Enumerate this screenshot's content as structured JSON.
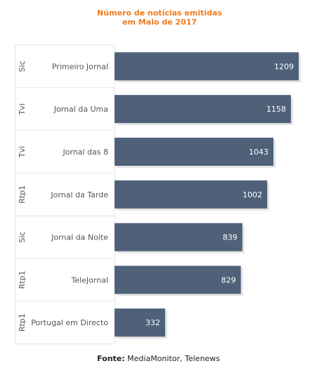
{
  "chart_data": {
    "type": "bar",
    "orientation": "horizontal",
    "title_lines": [
      "Número de notícias emitidas",
      "em Maio de 2017"
    ],
    "categories": [
      "Primeiro Jornal",
      "Jornal da Uma",
      "Jornal das 8",
      "Jornal da Tarde",
      "Jornal da Noite",
      "TeleJornal",
      "Portugal em Directo"
    ],
    "groups": [
      "Sic",
      "Tvi",
      "Tvi",
      "Rtp1",
      "Sic",
      "Rtp1",
      "Rtp1"
    ],
    "values": [
      1209,
      1158,
      1043,
      1002,
      839,
      829,
      332
    ],
    "value_labels": [
      "1209",
      "1158",
      "1043",
      "1002",
      "839",
      "829",
      "332"
    ],
    "xlim": [
      0,
      1209
    ],
    "grid": true,
    "colors": {
      "bar": "#4e6179",
      "title": "#f07b1d"
    }
  },
  "source": {
    "label": "Fonte:",
    "text": "MediaMonitor, Telenews"
  }
}
